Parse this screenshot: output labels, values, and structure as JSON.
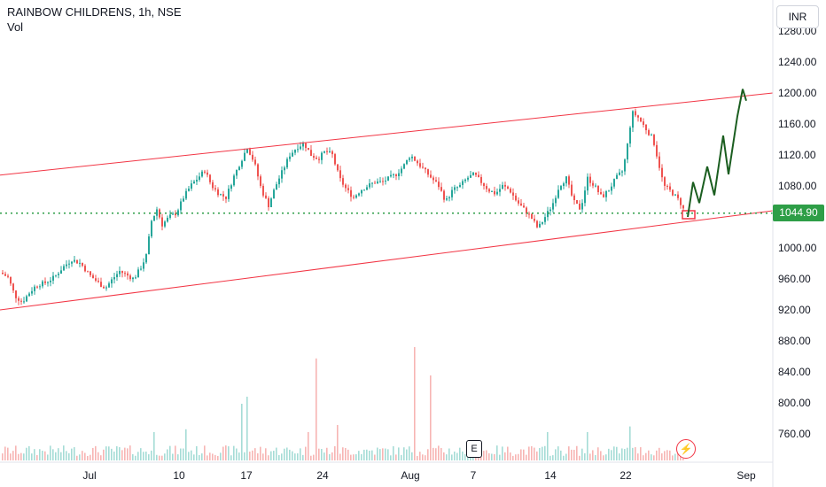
{
  "header": {
    "ticker": "RAINBOW CHILDRENS, 1h, NSE",
    "volume_label": "Vol"
  },
  "currency_button": "INR",
  "last_price_label": "1044.90",
  "event_marker": "E",
  "flash_icon": "lightning-icon",
  "colors": {
    "up": "#26a69a",
    "down": "#ef5350",
    "channel": "#f23645",
    "projection": "#1b5e20",
    "last_price": "#2e9e47"
  },
  "chart_data": {
    "type": "candlestick",
    "title": "RAINBOW CHILDRENS, 1h, NSE",
    "y_axis": {
      "ticks": [
        760,
        800,
        840,
        880,
        920,
        960,
        1000,
        1040,
        1080,
        1120,
        1160,
        1200,
        1240,
        1280
      ],
      "tick_labels": [
        "760.00",
        "800.00",
        "840.00",
        "880.00",
        "920.00",
        "960.00",
        "1000.00",
        "1080.00",
        "1120.00",
        "1160.00",
        "1200.00",
        "1240.00",
        "1280.00"
      ],
      "range": [
        740,
        1285
      ]
    },
    "x_axis": {
      "tick_labels": [
        "Jul",
        "10",
        "17",
        "24",
        "Aug",
        "7",
        "14",
        "22",
        "Sep"
      ]
    },
    "last_price": 1044.9,
    "price_path": [
      [
        0,
        968
      ],
      [
        8,
        962
      ],
      [
        16,
        938
      ],
      [
        24,
        930
      ],
      [
        32,
        942
      ],
      [
        40,
        952
      ],
      [
        50,
        955
      ],
      [
        60,
        962
      ],
      [
        70,
        975
      ],
      [
        80,
        985
      ],
      [
        90,
        980
      ],
      [
        100,
        965
      ],
      [
        110,
        955
      ],
      [
        118,
        948
      ],
      [
        126,
        960
      ],
      [
        134,
        970
      ],
      [
        142,
        965
      ],
      [
        150,
        960
      ],
      [
        158,
        975
      ],
      [
        164,
        990
      ],
      [
        170,
        1035
      ],
      [
        176,
        1050
      ],
      [
        182,
        1030
      ],
      [
        190,
        1040
      ],
      [
        198,
        1045
      ],
      [
        206,
        1065
      ],
      [
        214,
        1080
      ],
      [
        222,
        1090
      ],
      [
        230,
        1100
      ],
      [
        238,
        1080
      ],
      [
        246,
        1070
      ],
      [
        254,
        1065
      ],
      [
        262,
        1090
      ],
      [
        270,
        1110
      ],
      [
        278,
        1130
      ],
      [
        286,
        1110
      ],
      [
        294,
        1075
      ],
      [
        302,
        1055
      ],
      [
        310,
        1080
      ],
      [
        318,
        1100
      ],
      [
        326,
        1120
      ],
      [
        334,
        1130
      ],
      [
        342,
        1135
      ],
      [
        350,
        1120
      ],
      [
        358,
        1115
      ],
      [
        366,
        1125
      ],
      [
        374,
        1120
      ],
      [
        382,
        1090
      ],
      [
        390,
        1075
      ],
      [
        398,
        1065
      ],
      [
        406,
        1075
      ],
      [
        414,
        1080
      ],
      [
        422,
        1085
      ],
      [
        430,
        1085
      ],
      [
        438,
        1090
      ],
      [
        446,
        1095
      ],
      [
        454,
        1105
      ],
      [
        462,
        1120
      ],
      [
        470,
        1110
      ],
      [
        478,
        1100
      ],
      [
        486,
        1090
      ],
      [
        494,
        1080
      ],
      [
        502,
        1060
      ],
      [
        510,
        1075
      ],
      [
        518,
        1080
      ],
      [
        526,
        1090
      ],
      [
        534,
        1095
      ],
      [
        542,
        1085
      ],
      [
        550,
        1075
      ],
      [
        558,
        1070
      ],
      [
        566,
        1080
      ],
      [
        574,
        1075
      ],
      [
        582,
        1060
      ],
      [
        590,
        1050
      ],
      [
        598,
        1040
      ],
      [
        606,
        1025
      ],
      [
        614,
        1040
      ],
      [
        622,
        1055
      ],
      [
        630,
        1080
      ],
      [
        638,
        1090
      ],
      [
        646,
        1060
      ],
      [
        654,
        1050
      ],
      [
        662,
        1090
      ],
      [
        670,
        1080
      ],
      [
        678,
        1065
      ],
      [
        686,
        1075
      ],
      [
        694,
        1090
      ],
      [
        702,
        1100
      ],
      [
        708,
        1140
      ],
      [
        712,
        1175
      ],
      [
        718,
        1170
      ],
      [
        724,
        1160
      ],
      [
        730,
        1150
      ],
      [
        736,
        1140
      ],
      [
        742,
        1110
      ],
      [
        748,
        1080
      ],
      [
        754,
        1075
      ],
      [
        760,
        1068
      ],
      [
        766,
        1060
      ],
      [
        772,
        1045
      ]
    ],
    "projection_path": [
      [
        776,
        1040
      ],
      [
        782,
        1085
      ],
      [
        789,
        1058
      ],
      [
        798,
        1105
      ],
      [
        806,
        1068
      ],
      [
        816,
        1145
      ],
      [
        822,
        1095
      ],
      [
        832,
        1170
      ],
      [
        838,
        1205
      ],
      [
        842,
        1190
      ]
    ],
    "channel": {
      "upper": [
        [
          0,
          1094
        ],
        [
          872,
          1200
        ]
      ],
      "lower": [
        [
          0,
          920
        ],
        [
          872,
          1048
        ]
      ]
    },
    "volume_note": "histogram bars at bottom"
  }
}
